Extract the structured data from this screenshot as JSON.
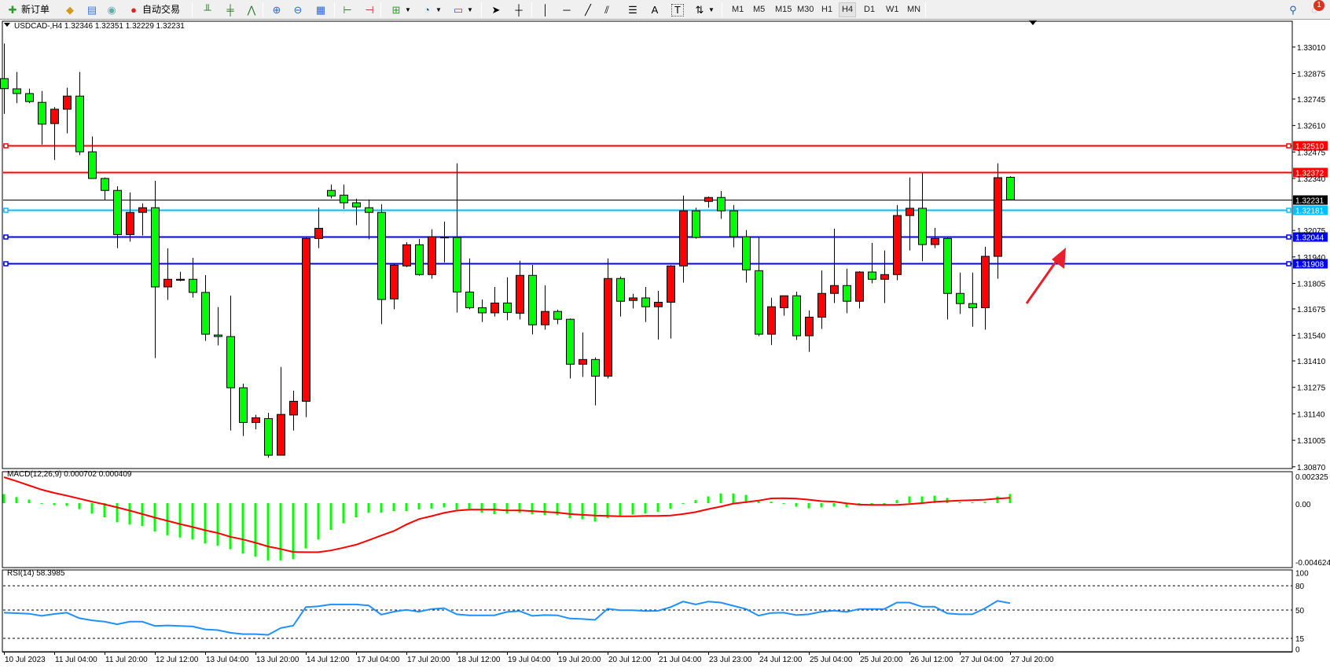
{
  "toolbar": {
    "new_order": "新订单",
    "auto_trading": "自动交易",
    "timeframes": [
      "M1",
      "M5",
      "M15",
      "M30",
      "H1",
      "H4",
      "D1",
      "W1",
      "MN"
    ],
    "selected_timeframe": "H4",
    "notification_count": "1",
    "icons": [
      "new-order-icon",
      "market-watch-icon",
      "data-window-icon",
      "signals-icon",
      "auto-trading-icon",
      "bar-chart-icon",
      "candlestick-icon",
      "line-chart-icon",
      "zoom-in-icon",
      "zoom-out-icon",
      "tile-windows-icon",
      "chart-shift-icon",
      "autoscroll-icon",
      "indicators-icon",
      "periods-icon",
      "templates-icon",
      "cursor-icon",
      "crosshair-icon",
      "vertical-line-icon",
      "horizontal-line-icon",
      "trendline-icon",
      "equidistant-channel-icon",
      "fibonacci-icon",
      "text-icon",
      "text-label-icon",
      "arrows-icon",
      "search-icon",
      "notification-icon"
    ]
  },
  "chart": {
    "symbol_header": "USDCAD-,H4  1.32346 1.32351 1.32229 1.32231",
    "bull_color": "#ff0000",
    "bear_color": "#00ff00",
    "price_ticks": [
      "1.33010",
      "1.32875",
      "1.32745",
      "1.32610",
      "1.32475",
      "1.32340",
      "1.32075",
      "1.31940",
      "1.31805",
      "1.31675",
      "1.31540",
      "1.31410",
      "1.31275",
      "1.31140",
      "1.31005",
      "1.30870"
    ],
    "levels": [
      {
        "price": "1.32510",
        "color": "#ff0000",
        "marker": true
      },
      {
        "price": "1.32372",
        "color": "#ff0000",
        "marker": false
      },
      {
        "price": "1.32231",
        "color": "#000000",
        "marker": false
      },
      {
        "price": "1.32181",
        "color": "#00bfff",
        "marker": true
      },
      {
        "price": "1.32044",
        "color": "#0000ff",
        "marker": true
      },
      {
        "price": "1.31908",
        "color": "#0000ff",
        "marker": true
      }
    ],
    "candles": [
      [
        1.32849,
        1.33028,
        1.32669,
        1.32798
      ],
      [
        1.32797,
        1.32883,
        1.32724,
        1.32773
      ],
      [
        1.32773,
        1.32798,
        1.32724,
        1.32732
      ],
      [
        1.32728,
        1.32786,
        1.32513,
        1.32617
      ],
      [
        1.3262,
        1.32704,
        1.32434,
        1.32693
      ],
      [
        1.32693,
        1.32803,
        1.3257,
        1.3276
      ],
      [
        1.3276,
        1.32883,
        1.32459,
        1.32476
      ],
      [
        1.32476,
        1.32554,
        1.3234,
        1.3234
      ],
      [
        1.3234,
        1.32345,
        1.32229,
        1.32279
      ],
      [
        1.32279,
        1.323,
        1.31985,
        1.32054
      ],
      [
        1.32054,
        1.32269,
        1.32018,
        1.32167
      ],
      [
        1.32167,
        1.32213,
        1.32049,
        1.32191
      ],
      [
        1.32191,
        1.32328,
        1.31424,
        1.31787
      ],
      [
        1.31787,
        1.31984,
        1.31721,
        1.31826
      ],
      [
        1.31821,
        1.31864,
        1.31816,
        1.31826
      ],
      [
        1.31826,
        1.31936,
        1.31733,
        1.31759
      ],
      [
        1.31759,
        1.31847,
        1.31512,
        1.31546
      ],
      [
        1.31542,
        1.31684,
        1.31489,
        1.31534
      ],
      [
        1.31534,
        1.31743,
        1.31055,
        1.31273
      ],
      [
        1.31273,
        1.31294,
        1.31027,
        1.31096
      ],
      [
        1.31096,
        1.31135,
        1.31061,
        1.3112
      ],
      [
        1.31116,
        1.31145,
        1.30916,
        1.30929
      ],
      [
        1.30929,
        1.31379,
        1.30929,
        1.31137
      ],
      [
        1.31134,
        1.31258,
        1.31055,
        1.31204
      ],
      [
        1.31204,
        1.32043,
        1.31123,
        1.32034
      ],
      [
        1.32034,
        1.32192,
        1.31985,
        1.32086
      ],
      [
        1.32279,
        1.32309,
        1.32238,
        1.32251
      ],
      [
        1.32255,
        1.32309,
        1.32184,
        1.32216
      ],
      [
        1.32216,
        1.32237,
        1.32102,
        1.32195
      ],
      [
        1.32191,
        1.32233,
        1.3203,
        1.32167
      ],
      [
        1.32167,
        1.32209,
        1.31597,
        1.31723
      ],
      [
        1.31726,
        1.31905,
        1.31673,
        1.31898
      ],
      [
        1.31894,
        1.32015,
        1.31888,
        1.32002
      ],
      [
        1.32002,
        1.32032,
        1.31844,
        1.3185
      ],
      [
        1.3185,
        1.32081,
        1.31829,
        1.32043
      ],
      [
        1.32038,
        1.3212,
        1.31912,
        1.32041
      ],
      [
        1.32039,
        1.32417,
        1.31656,
        1.31761
      ],
      [
        1.31761,
        1.31932,
        1.31673,
        1.31681
      ],
      [
        1.31681,
        1.31723,
        1.31608,
        1.31655
      ],
      [
        1.31655,
        1.31787,
        1.31636,
        1.31705
      ],
      [
        1.31705,
        1.31836,
        1.31617,
        1.31657
      ],
      [
        1.31653,
        1.3192,
        1.31621,
        1.31846
      ],
      [
        1.31846,
        1.31899,
        1.31545,
        1.31594
      ],
      [
        1.31594,
        1.31795,
        1.31569,
        1.31662
      ],
      [
        1.31662,
        1.31671,
        1.31597,
        1.31622
      ],
      [
        1.31622,
        1.31626,
        1.3132,
        1.31393
      ],
      [
        1.31393,
        1.31555,
        1.31328,
        1.31417
      ],
      [
        1.31417,
        1.31427,
        1.31183,
        1.31332
      ],
      [
        1.31332,
        1.31932,
        1.3132,
        1.3183
      ],
      [
        1.3183,
        1.3184,
        1.31636,
        1.31714
      ],
      [
        1.31718,
        1.31752,
        1.31677,
        1.31731
      ],
      [
        1.31731,
        1.31787,
        1.31608,
        1.31686
      ],
      [
        1.31686,
        1.31767,
        1.31519,
        1.31709
      ],
      [
        1.31709,
        1.31898,
        1.31524,
        1.31894
      ],
      [
        1.31894,
        1.32253,
        1.31809,
        1.32175
      ],
      [
        1.32175,
        1.32191,
        1.32033,
        1.32039
      ],
      [
        1.32223,
        1.32248,
        1.32191,
        1.32243
      ],
      [
        1.32243,
        1.32276,
        1.32134,
        1.32175
      ],
      [
        1.32175,
        1.32205,
        1.31989,
        1.32043
      ],
      [
        1.32043,
        1.32077,
        1.31809,
        1.31874
      ],
      [
        1.3187,
        1.32043,
        1.31536,
        1.31546
      ],
      [
        1.31546,
        1.31732,
        1.31491,
        1.31686
      ],
      [
        1.31681,
        1.31742,
        1.3164,
        1.31742
      ],
      [
        1.31742,
        1.31763,
        1.31517,
        1.31538
      ],
      [
        1.31538,
        1.31667,
        1.31456,
        1.31633
      ],
      [
        1.31633,
        1.31871,
        1.31573,
        1.31754
      ],
      [
        1.31754,
        1.32084,
        1.31705,
        1.31794
      ],
      [
        1.31794,
        1.3188,
        1.31653,
        1.31714
      ],
      [
        1.31714,
        1.31867,
        1.31677,
        1.31863
      ],
      [
        1.31863,
        1.32012,
        1.31805,
        1.31826
      ],
      [
        1.31826,
        1.31973,
        1.31705,
        1.3185
      ],
      [
        1.3185,
        1.32205,
        1.31821,
        1.32151
      ],
      [
        1.32151,
        1.32345,
        1.31973,
        1.32188
      ],
      [
        1.32188,
        1.32369,
        1.31918,
        1.32003
      ],
      [
        1.32003,
        1.32088,
        1.31985,
        1.32034
      ],
      [
        1.32034,
        1.32043,
        1.31621,
        1.31754
      ],
      [
        1.31754,
        1.3186,
        1.31649,
        1.31702
      ],
      [
        1.31702,
        1.3186,
        1.31584,
        1.31681
      ],
      [
        1.31681,
        1.31992,
        1.31569,
        1.31943
      ],
      [
        1.31943,
        1.32417,
        1.31829,
        1.32344
      ],
      [
        1.32346,
        1.32351,
        1.32229,
        1.32231
      ]
    ],
    "time_labels": [
      "10 Jul 2023",
      "11 Jul 04:00",
      "11 Jul 20:00",
      "12 Jul 12:00",
      "13 Jul 04:00",
      "13 Jul 20:00",
      "14 Jul 12:00",
      "17 Jul 04:00",
      "17 Jul 20:00",
      "18 Jul 12:00",
      "19 Jul 04:00",
      "19 Jul 20:00",
      "20 Jul 12:00",
      "21 Jul 04:00",
      "23 Jul 23:00",
      "24 Jul 12:00",
      "25 Jul 04:00",
      "25 Jul 20:00",
      "26 Jul 12:00",
      "27 Jul 04:00",
      "27 Jul 20:00"
    ],
    "annotation_arrow_color": "#e8202a"
  },
  "macd": {
    "label": "MACD(12,26,9) 0.000702 0.000409",
    "ticks": [
      "0.002325",
      "0.00",
      "-0.004624"
    ],
    "histogram_color": "#00ff00",
    "signal_color": "#ff0000",
    "histogram": [
      0.000691,
      0.000461,
      0.000269,
      -5.8e-05,
      -0.000154,
      -0.000211,
      -0.000461,
      -0.000806,
      -0.001094,
      -0.001478,
      -0.001651,
      -0.001766,
      -0.002189,
      -0.002477,
      -0.00265,
      -0.002803,
      -0.00311,
      -0.003283,
      -0.003552,
      -0.003898,
      -0.004128,
      -0.004416,
      -0.004416,
      -0.00432,
      -0.003494,
      -0.002803,
      -0.002054,
      -0.001555,
      -0.001094,
      -0.000749,
      -0.00073,
      -0.000614,
      -0.000614,
      -0.00048,
      -0.000422,
      -0.000326,
      -0.000499,
      -0.000422,
      -0.000749,
      -0.000845,
      -0.000806,
      -0.000749,
      -0.000864,
      -0.000922,
      -0.000922,
      -0.001152,
      -0.001248,
      -0.001421,
      -0.001152,
      -0.00096,
      -0.000883,
      -0.000787,
      -0.000672,
      -0.000442,
      -3.8e-05,
      0.00023,
      0.000518,
      0.000749,
      0.000749,
      0.000634,
      0.000154,
      0.000115,
      -3.8e-05,
      -0.000269,
      -0.000403,
      -0.000326,
      -0.000269,
      -0.000326,
      -9.6e-05,
      -9.6e-05,
      -9.6e-05,
      0.00023,
      0.000518,
      0.000518,
      0.000576,
      0.000403,
      7.7e-05,
      5.8e-05,
      9.6e-05,
      0.000518,
      0.000702
    ],
    "signal": [
      0.001997,
      0.00169,
      0.001363,
      0.001037,
      0.000787,
      0.000576,
      0.000346,
      0.000115,
      -9.6e-05,
      -0.000326,
      -0.000576,
      -0.000845,
      -0.001114,
      -0.001363,
      -0.001613,
      -0.001843,
      -0.002093,
      -0.002304,
      -0.002592,
      -0.002803,
      -0.003053,
      -0.003341,
      -0.003533,
      -0.003763,
      -0.003782,
      -0.003782,
      -0.003648,
      -0.003437,
      -0.003206,
      -0.002861,
      -0.002496,
      -0.00215,
      -0.001651,
      -0.001229,
      -0.000998,
      -0.000749,
      -0.000576,
      -0.000499,
      -0.000499,
      -0.000499,
      -0.000557,
      -0.000557,
      -0.000614,
      -0.000672,
      -0.00073,
      -0.000845,
      -0.000902,
      -0.00096,
      -0.000979,
      -0.001018,
      -0.001018,
      -0.000979,
      -0.000979,
      -0.00096,
      -0.000845,
      -0.000691,
      -0.000461,
      -0.000269,
      -3.8e-05,
      7.7e-05,
      0.000192,
      0.000365,
      0.000384,
      0.000346,
      0.000269,
      0.000154,
      0.000115,
      -1.9e-05,
      -0.000115,
      -0.000134,
      -0.000134,
      -0.000134,
      -7.7e-05,
      0,
      9.6e-05,
      0.000154,
      0.000192,
      0.00023,
      0.000269,
      0.000346,
      0.000409
    ]
  },
  "rsi": {
    "label": "RSI(14) 58.3985",
    "ticks": [
      "100",
      "80",
      "50",
      "15",
      "0"
    ],
    "levels": [
      80,
      50,
      15
    ],
    "color": "#1e90ff",
    "values": [
      46.7,
      46.1,
      45.4,
      42.8,
      45.1,
      46.7,
      39.9,
      37.3,
      35.6,
      32.4,
      35.6,
      35.6,
      30.4,
      31.0,
      30.4,
      29.7,
      26.1,
      25.2,
      21.9,
      20.3,
      20.3,
      19.3,
      27.8,
      30.7,
      53.6,
      54.6,
      56.9,
      56.9,
      56.9,
      55.6,
      44.4,
      48.0,
      50.3,
      48.0,
      51.3,
      52.3,
      44.8,
      43.5,
      43.5,
      43.5,
      47.7,
      48.7,
      42.8,
      43.8,
      43.5,
      39.5,
      38.9,
      37.9,
      51.6,
      49.7,
      49.7,
      48.7,
      49.0,
      53.6,
      60.5,
      56.9,
      60.5,
      59.2,
      55.2,
      51.3,
      43.1,
      46.4,
      46.7,
      43.8,
      44.8,
      48.0,
      49.3,
      47.7,
      51.3,
      51.3,
      51.3,
      59.2,
      59.2,
      54.2,
      54.2,
      45.8,
      44.8,
      44.8,
      52.0,
      61.4,
      58.4
    ]
  }
}
